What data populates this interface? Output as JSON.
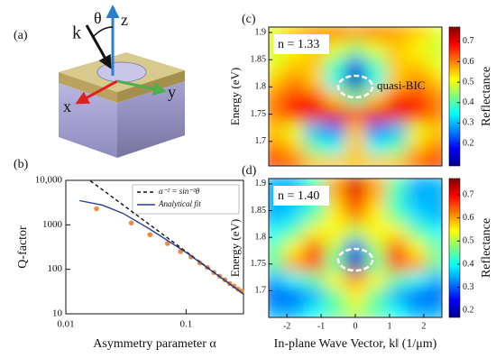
{
  "diagram": {
    "label": "(a)",
    "k": "k",
    "theta": "θ",
    "z": "z",
    "x": "x",
    "y": "y"
  },
  "chart_data": [
    {
      "type": "line",
      "label": "(b)",
      "xlabel": "Asymmetry parameter α",
      "ylabel": "Q-factor",
      "xlog": true,
      "ylog": true,
      "xlim": [
        0.01,
        0.3
      ],
      "xticks": [
        0.01,
        0.1
      ],
      "ylim": [
        10,
        10000
      ],
      "yticks": [
        10,
        100,
        1000,
        {
          "value": 10000,
          "label": "10,000"
        }
      ],
      "legend": "upper right",
      "series": [
        {
          "style": "markers",
          "color": "#f08a3c",
          "x": [
            0.018,
            0.035,
            0.05,
            0.07,
            0.09,
            0.11,
            0.13,
            0.15,
            0.17,
            0.19,
            0.21,
            0.23,
            0.25,
            0.27,
            0.29
          ],
          "values": [
            2300,
            1100,
            600,
            380,
            250,
            190,
            140,
            110,
            85,
            70,
            58,
            48,
            42,
            36,
            32
          ]
        },
        {
          "name": "α⁻² = sin⁻²θ",
          "style": "dashed",
          "color": "#111111",
          "x": [
            0.016,
            0.3
          ],
          "values": [
            9766,
            27.8
          ]
        },
        {
          "name": "Analytical fit",
          "style": "solid",
          "color": "#2340a0",
          "x": [
            0.013,
            0.02,
            0.03,
            0.05,
            0.1,
            0.2,
            0.3
          ],
          "values": [
            3500,
            2800,
            1800,
            800,
            240,
            62,
            28
          ]
        }
      ]
    },
    {
      "type": "heatmap",
      "label": "(c)",
      "annotations": [
        "n = 1.33",
        "quasi-BIC"
      ],
      "ylabel": "Energy (eV)",
      "colorbar_label": "Reflectance",
      "x": [
        -2.4,
        -1.8,
        -1.2,
        -0.6,
        0,
        0.6,
        1.2,
        1.8,
        2.4
      ],
      "y": [
        1.9,
        1.87,
        1.84,
        1.81,
        1.78,
        1.75,
        1.72,
        1.69,
        1.66
      ],
      "z": [
        [
          0.5,
          0.55,
          0.58,
          0.6,
          0.58,
          0.6,
          0.58,
          0.55,
          0.5
        ],
        [
          0.48,
          0.52,
          0.55,
          0.5,
          0.45,
          0.5,
          0.55,
          0.52,
          0.48
        ],
        [
          0.5,
          0.55,
          0.55,
          0.4,
          0.25,
          0.4,
          0.55,
          0.55,
          0.5
        ],
        [
          0.55,
          0.6,
          0.55,
          0.35,
          0.1,
          0.35,
          0.55,
          0.6,
          0.55
        ],
        [
          0.6,
          0.65,
          0.65,
          0.55,
          0.4,
          0.55,
          0.65,
          0.65,
          0.6
        ],
        [
          0.6,
          0.68,
          0.7,
          0.7,
          0.65,
          0.7,
          0.7,
          0.68,
          0.6
        ],
        [
          0.55,
          0.5,
          0.3,
          0.25,
          0.55,
          0.25,
          0.3,
          0.5,
          0.55
        ],
        [
          0.6,
          0.55,
          0.4,
          0.35,
          0.55,
          0.35,
          0.4,
          0.55,
          0.6
        ],
        [
          0.65,
          0.62,
          0.55,
          0.55,
          0.55,
          0.55,
          0.55,
          0.62,
          0.65
        ]
      ],
      "xlim": [
        -2.53,
        2.53
      ],
      "ylim": [
        1.655,
        1.91
      ],
      "yticks": [
        1.7,
        1.75,
        1.8,
        1.85,
        1.9
      ],
      "zlim": [
        0.09,
        0.77
      ],
      "zticks": [
        0.2,
        0.3,
        0.4,
        0.5,
        0.6,
        0.7
      ]
    },
    {
      "type": "heatmap",
      "label": "(d)",
      "annotations": [
        "n = 1.40"
      ],
      "ylabel": "Energy (eV)",
      "xlabel": "In-plane Wave Vector, k‖ (1/μm)",
      "colorbar_label": "Reflectance",
      "x": [
        -2.4,
        -1.8,
        -1.2,
        -0.6,
        0,
        0.6,
        1.2,
        1.8,
        2.4
      ],
      "y": [
        1.9,
        1.87,
        1.84,
        1.81,
        1.78,
        1.75,
        1.72,
        1.69,
        1.66
      ],
      "z": [
        [
          0.35,
          0.35,
          0.45,
          0.6,
          0.72,
          0.6,
          0.45,
          0.35,
          0.35
        ],
        [
          0.35,
          0.35,
          0.42,
          0.58,
          0.7,
          0.58,
          0.42,
          0.35,
          0.35
        ],
        [
          0.35,
          0.38,
          0.45,
          0.55,
          0.62,
          0.55,
          0.45,
          0.38,
          0.35
        ],
        [
          0.4,
          0.45,
          0.55,
          0.55,
          0.5,
          0.55,
          0.55,
          0.45,
          0.4
        ],
        [
          0.45,
          0.55,
          0.65,
          0.5,
          0.3,
          0.5,
          0.65,
          0.55,
          0.45
        ],
        [
          0.45,
          0.6,
          0.65,
          0.45,
          0.2,
          0.45,
          0.65,
          0.6,
          0.45
        ],
        [
          0.35,
          0.4,
          0.45,
          0.55,
          0.6,
          0.55,
          0.45,
          0.4,
          0.35
        ],
        [
          0.3,
          0.3,
          0.35,
          0.45,
          0.55,
          0.45,
          0.35,
          0.3,
          0.3
        ],
        [
          0.35,
          0.35,
          0.4,
          0.45,
          0.5,
          0.45,
          0.4,
          0.35,
          0.35
        ]
      ],
      "xlim": [
        -2.53,
        2.53
      ],
      "xticks": [
        -2,
        -1,
        0,
        1,
        2
      ],
      "ylim": [
        1.65,
        1.91
      ],
      "yticks": [
        1.7,
        1.75,
        1.8,
        1.85,
        1.9
      ],
      "zlim": [
        0.17,
        0.77
      ],
      "zticks": [
        0.2,
        0.3,
        0.4,
        0.5,
        0.6,
        0.7
      ]
    }
  ]
}
